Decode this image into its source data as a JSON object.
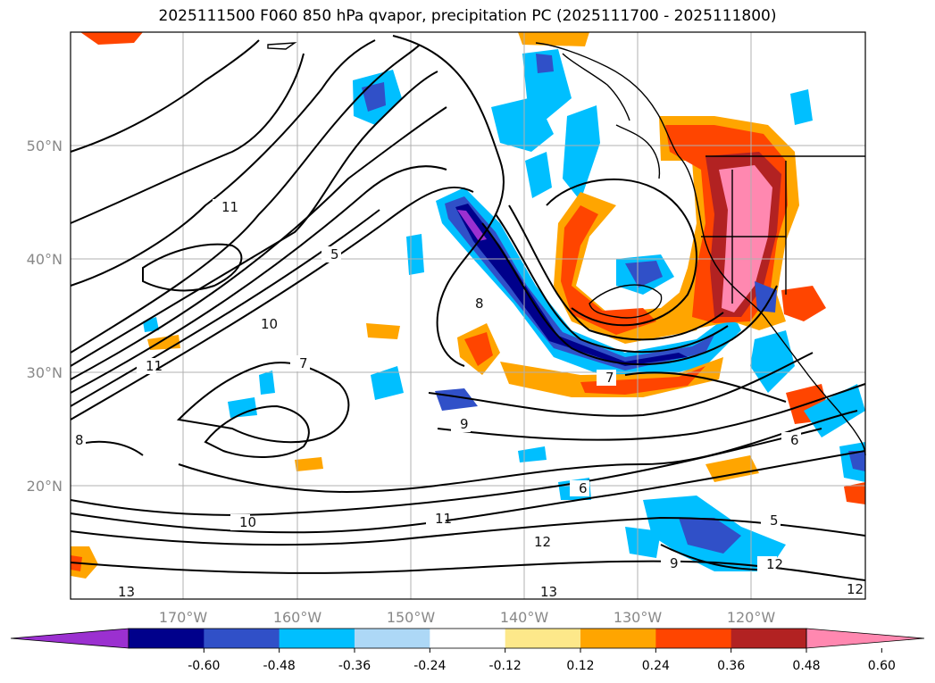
{
  "title": "2025111500 F060 850 hPa qvapor, precipitation PC (2025111700 - 2025111800)",
  "latitudes": [
    "50°N",
    "40°N",
    "30°N",
    "20°N"
  ],
  "longitudes": [
    "170°W",
    "160°W",
    "150°W",
    "140°W",
    "130°W",
    "120°W"
  ],
  "colorbar": {
    "ticks": [
      "-0.60",
      "-0.48",
      "-0.36",
      "-0.24",
      "-0.12",
      "0.12",
      "0.24",
      "0.36",
      "0.48",
      "0.60"
    ],
    "colors": [
      "#9b30d0",
      "#00008b",
      "#3050c8",
      "#00bfff",
      "#add8f6",
      "#ffffff",
      "#fde88a",
      "#ffa500",
      "#ff4500",
      "#b22222",
      "#ff88b0"
    ]
  },
  "contour_labels": [
    {
      "text": "12"
    },
    {
      "text": "11"
    },
    {
      "text": "10"
    },
    {
      "text": "9"
    },
    {
      "text": "8"
    },
    {
      "text": "7"
    },
    {
      "text": "6"
    },
    {
      "text": "5"
    },
    {
      "text": "13"
    },
    {
      "text": "12"
    },
    {
      "text": "13"
    },
    {
      "text": "12"
    },
    {
      "text": "11"
    },
    {
      "text": "9"
    },
    {
      "text": "8"
    },
    {
      "text": "7"
    },
    {
      "text": "6"
    },
    {
      "text": "5"
    },
    {
      "text": "10"
    },
    {
      "text": "11"
    }
  ]
}
